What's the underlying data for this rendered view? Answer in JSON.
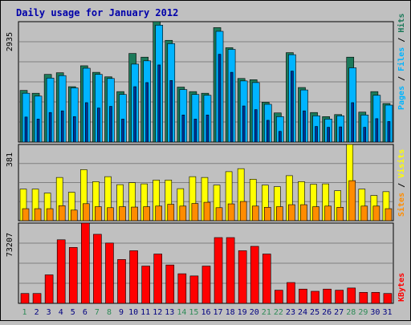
{
  "colors": {
    "background": "#c0c0c0",
    "panel": "#c0c0c0",
    "grid": "#808080",
    "border": "#000000",
    "title": "#0000aa",
    "hits": "#1c7a5a",
    "files": "#00b4ff",
    "pages": "#003399",
    "visits": "#ffff00",
    "sites": "#ff8c00",
    "kbytes": "#ff0000",
    "weekend_label": "#2e8b57",
    "weekday_label": "#000080"
  },
  "chart_data": [
    {
      "type": "bar",
      "title": "Daily usage for January 2012",
      "categories": [
        "1",
        "2",
        "3",
        "4",
        "5",
        "6",
        "7",
        "8",
        "9",
        "10",
        "11",
        "12",
        "13",
        "14",
        "15",
        "16",
        "17",
        "18",
        "19",
        "20",
        "21",
        "22",
        "23",
        "24",
        "25",
        "26",
        "27",
        "28",
        "29",
        "30",
        "31"
      ],
      "weekend_days": [
        "1",
        "7",
        "8",
        "14",
        "15",
        "21",
        "22",
        "28",
        "29"
      ],
      "ymax_label": "2935",
      "ylim": [
        0,
        2935
      ],
      "legend": [
        "Pages",
        "Files",
        "Hits"
      ],
      "series": [
        {
          "name": "Hits",
          "values": [
            1260,
            1190,
            1650,
            1690,
            1350,
            1860,
            1700,
            1590,
            1230,
            2160,
            2070,
            2935,
            2480,
            1340,
            1230,
            1190,
            2790,
            2300,
            1550,
            1520,
            970,
            710,
            2180,
            1330,
            720,
            620,
            670,
            2070,
            730,
            1230,
            940
          ]
        },
        {
          "name": "Files",
          "values": [
            1190,
            1120,
            1560,
            1620,
            1320,
            1800,
            1650,
            1550,
            1160,
            1900,
            1980,
            2850,
            2400,
            1280,
            1160,
            1140,
            2700,
            2260,
            1490,
            1450,
            920,
            620,
            2130,
            1270,
            640,
            560,
            640,
            1810,
            660,
            1140,
            900
          ]
        },
        {
          "name": "Pages",
          "values": [
            610,
            560,
            720,
            760,
            620,
            960,
            830,
            870,
            560,
            1350,
            1450,
            1880,
            1500,
            660,
            560,
            660,
            2140,
            1700,
            880,
            790,
            530,
            260,
            1730,
            760,
            380,
            360,
            370,
            960,
            360,
            570,
            500
          ]
        }
      ]
    },
    {
      "type": "bar",
      "categories": [
        "1",
        "2",
        "3",
        "4",
        "5",
        "6",
        "7",
        "8",
        "9",
        "10",
        "11",
        "12",
        "13",
        "14",
        "15",
        "16",
        "17",
        "18",
        "19",
        "20",
        "21",
        "22",
        "23",
        "24",
        "25",
        "26",
        "27",
        "28",
        "29",
        "30",
        "31"
      ],
      "ymax_label": "381",
      "ylim": [
        0,
        381
      ],
      "legend": [
        "Sites",
        "Visits"
      ],
      "series": [
        {
          "name": "Visits",
          "values": [
            158,
            158,
            138,
            216,
            142,
            255,
            195,
            220,
            180,
            190,
            184,
            203,
            203,
            160,
            220,
            216,
            178,
            245,
            260,
            207,
            178,
            170,
            225,
            195,
            182,
            184,
            150,
            381,
            158,
            126,
            145
          ]
        },
        {
          "name": "Sites",
          "values": [
            60,
            60,
            60,
            75,
            53,
            85,
            70,
            65,
            70,
            68,
            70,
            73,
            82,
            73,
            86,
            92,
            65,
            84,
            96,
            73,
            67,
            70,
            80,
            80,
            70,
            73,
            67,
            200,
            73,
            73,
            60
          ]
        }
      ]
    },
    {
      "type": "bar",
      "categories": [
        "1",
        "2",
        "3",
        "4",
        "5",
        "6",
        "7",
        "8",
        "9",
        "10",
        "11",
        "12",
        "13",
        "14",
        "15",
        "16",
        "17",
        "18",
        "19",
        "20",
        "21",
        "22",
        "23",
        "24",
        "25",
        "26",
        "27",
        "28",
        "29",
        "30",
        "31"
      ],
      "ymax_label": "73207",
      "ylim": [
        0,
        73207
      ],
      "legend": [
        "KBytes"
      ],
      "series": [
        {
          "name": "KBytes",
          "values": [
            9000,
            9000,
            26000,
            58000,
            51000,
            73207,
            63000,
            55000,
            40000,
            48000,
            34000,
            45000,
            35000,
            27000,
            25000,
            34000,
            60000,
            60000,
            48000,
            52000,
            45000,
            12000,
            19000,
            13000,
            11000,
            13000,
            12000,
            14000,
            10000,
            10000,
            9000
          ]
        }
      ]
    }
  ]
}
